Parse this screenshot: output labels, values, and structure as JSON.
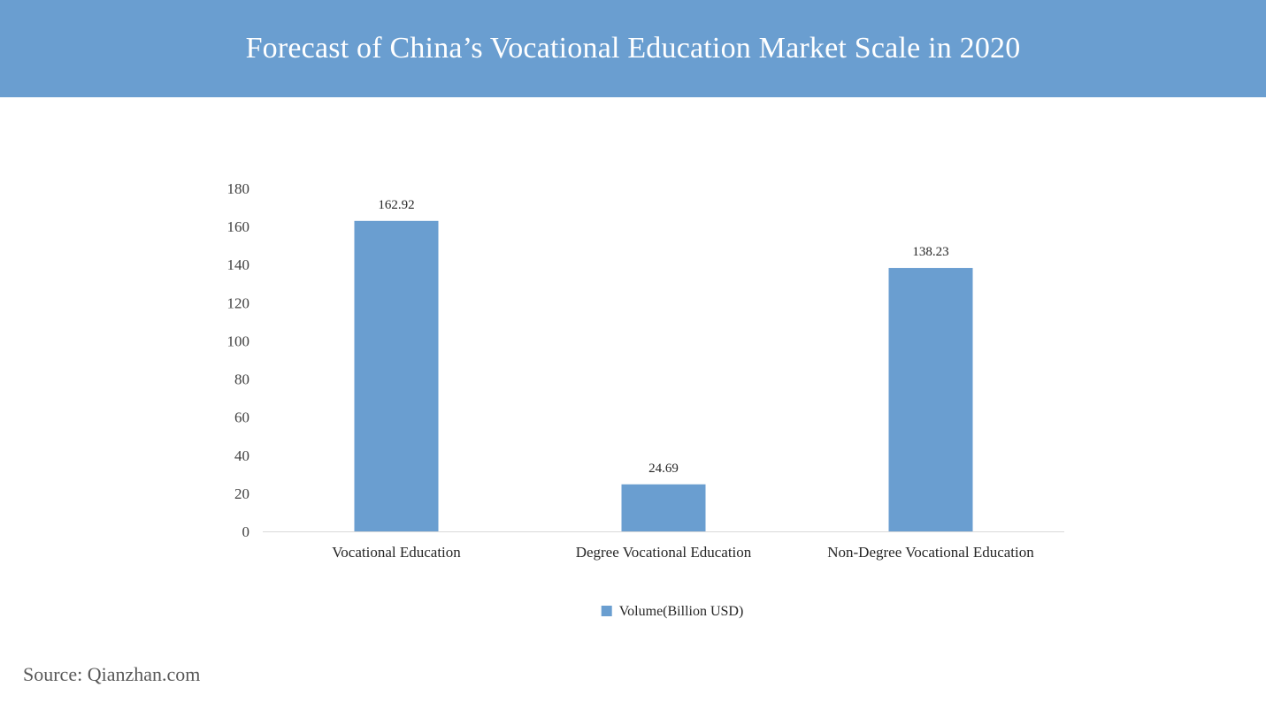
{
  "header": {
    "title": "Forecast of China’s Vocational Education Market Scale in 2020",
    "background_color": "#6a9ed0"
  },
  "chart_data": {
    "type": "bar",
    "title": "",
    "xlabel": "",
    "ylabel": "",
    "categories": [
      "Vocational Education",
      "Degree Vocational Education",
      "Non-Degree Vocational Education"
    ],
    "series": [
      {
        "name": "Volume(Billion USD)",
        "values": [
          162.92,
          24.69,
          138.23
        ],
        "color": "#6a9ed0"
      }
    ],
    "data_labels": [
      "162.92",
      "24.69",
      "138.23"
    ],
    "ylim": [
      0,
      180
    ],
    "yticks": [
      0,
      20,
      40,
      60,
      80,
      100,
      120,
      140,
      160,
      180
    ],
    "grid": false,
    "legend_position": "bottom"
  },
  "footer": {
    "source": "Source: Qianzhan.com"
  }
}
